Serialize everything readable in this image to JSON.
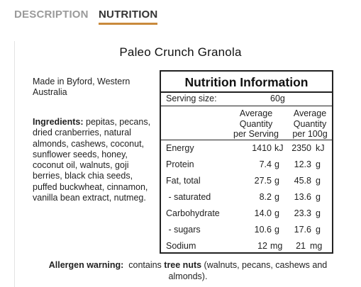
{
  "tabs": [
    {
      "label": "DESCRIPTION"
    },
    {
      "label": "NUTRITION"
    }
  ],
  "product_title": "Paleo Crunch Granola",
  "made_in": "Made in Byford, Western Australia",
  "ingredients": {
    "label": "Ingredients:",
    "text": " pepitas, pecans, dried cranberries, natural almonds, cashews, coconut, sunflower seeds, honey, coconut oil, walnuts, goji berries, black chia seeds, puffed buckwheat, cinnamon, vanilla bean extract, nutmeg."
  },
  "nutrition": {
    "title": "Nutrition Information",
    "serving_label": "Serving size:",
    "serving_value": "60g",
    "col1_header": [
      "Average",
      "Quantity",
      "per Serving"
    ],
    "col2_header": [
      "Average",
      "Quantity",
      "per 100g"
    ],
    "rows": [
      {
        "label": "Energy",
        "per_serving": "1410",
        "unit1": "kJ",
        "per_100g": "2350",
        "unit2": "kJ"
      },
      {
        "label": "Protein",
        "per_serving": "7.4",
        "unit1": "g",
        "per_100g": "12.3",
        "unit2": "g"
      },
      {
        "label": "Fat, total",
        "per_serving": "27.5",
        "unit1": "g",
        "per_100g": "45.8",
        "unit2": "g"
      },
      {
        "label": " - saturated",
        "per_serving": "8.2",
        "unit1": "g",
        "per_100g": "13.6",
        "unit2": "g"
      },
      {
        "label": "Carbohydrate",
        "per_serving": "14.0",
        "unit1": "g",
        "per_100g": "23.3",
        "unit2": "g"
      },
      {
        "label": " - sugars",
        "per_serving": "10.6",
        "unit1": "g",
        "per_100g": "17.6",
        "unit2": "g"
      },
      {
        "label": "Sodium",
        "per_serving": "12",
        "unit1": "mg",
        "per_100g": "21",
        "unit2": "mg"
      }
    ]
  },
  "allergen": {
    "label": "Allergen warning:",
    "pre": "  contains ",
    "bold": "tree nuts",
    "post": " (walnuts, pecans, cashews and almonds)."
  },
  "colors": {
    "active_tab_underline": "#c98a3c",
    "inactive_tab": "#9a9a9a"
  }
}
